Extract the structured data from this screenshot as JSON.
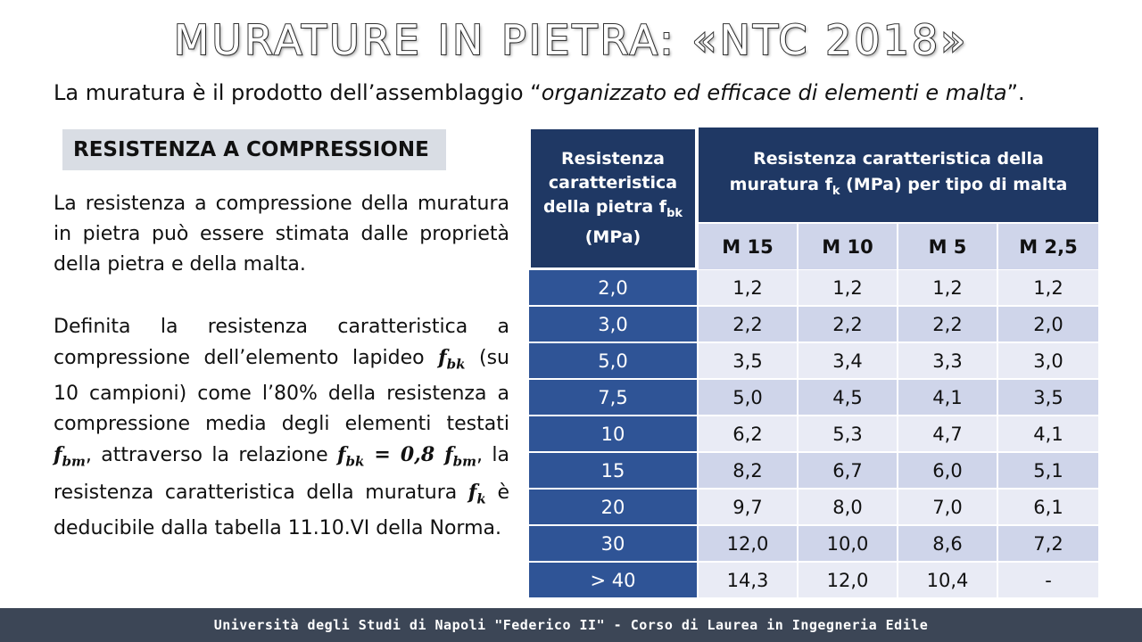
{
  "title": "MURATURE IN PIETRA: «NTC 2018»",
  "subtitle": {
    "prefix": "La muratura è il prodotto dell’assemblaggio “",
    "emph": "organizzato ed efficace di elementi e malta",
    "suffix": "”."
  },
  "section": "RESISTENZA A COMPRESSIONE",
  "para1": "La resistenza a compressione della muratura in pietra può essere stimata dalle proprietà della pietra e della malta.",
  "para2": {
    "t1": "Definita la resistenza caratteristica a compressione dell’elemento lapideo ",
    "fbk_f": "f",
    "fbk_sub": "bk",
    "t2": " (su 10 campioni) come l’80% della resistenza a compressione media degli elementi testati ",
    "fbm_f": "f",
    "fbm_sub": "bm",
    "t3": ", attraverso la relazione ",
    "eq_f1": "f",
    "eq_sub1": "bk",
    "eq_mid": " = 0,8 ",
    "eq_f2": "f",
    "eq_sub2": "bm",
    "t4": ", la resistenza caratteristica della muratura ",
    "fk_f": "f",
    "fk_sub": "k",
    "t5": " è deducibile dalla tabella 11.10.VI della Norma."
  },
  "table": {
    "left_header": {
      "l1": "Resistenza",
      "l2": "caratteristica",
      "l3": "della pietra f",
      "l3_sub": "bk",
      "l4": "(MPa)"
    },
    "top_header": {
      "l1": "Resistenza caratteristica della",
      "l2a": "muratura f",
      "l2_sub": "k",
      "l2b": " (MPa) per tipo di malta"
    },
    "mortars": [
      "M 15",
      "M 10",
      "M 5",
      "M 2,5"
    ],
    "rows": [
      {
        "fbk": "2,0",
        "values": [
          "1,2",
          "1,2",
          "1,2",
          "1,2"
        ]
      },
      {
        "fbk": "3,0",
        "values": [
          "2,2",
          "2,2",
          "2,2",
          "2,0"
        ]
      },
      {
        "fbk": "5,0",
        "values": [
          "3,5",
          "3,4",
          "3,3",
          "3,0"
        ]
      },
      {
        "fbk": "7,5",
        "values": [
          "5,0",
          "4,5",
          "4,1",
          "3,5"
        ]
      },
      {
        "fbk": "10",
        "values": [
          "6,2",
          "5,3",
          "4,7",
          "4,1"
        ]
      },
      {
        "fbk": "15",
        "values": [
          "8,2",
          "6,7",
          "6,0",
          "5,1"
        ]
      },
      {
        "fbk": "20",
        "values": [
          "9,7",
          "8,0",
          "7,0",
          "6,1"
        ]
      },
      {
        "fbk": "30",
        "values": [
          "12,0",
          "10,0",
          "8,6",
          "7,2"
        ]
      },
      {
        "fbk": "> 40",
        "values": [
          "14,3",
          "12,0",
          "10,4",
          "-"
        ]
      }
    ]
  },
  "footer": "Università degli Studi di Napoli \"Federico II\" - Corso di Laurea in Ingegneria Edile"
}
